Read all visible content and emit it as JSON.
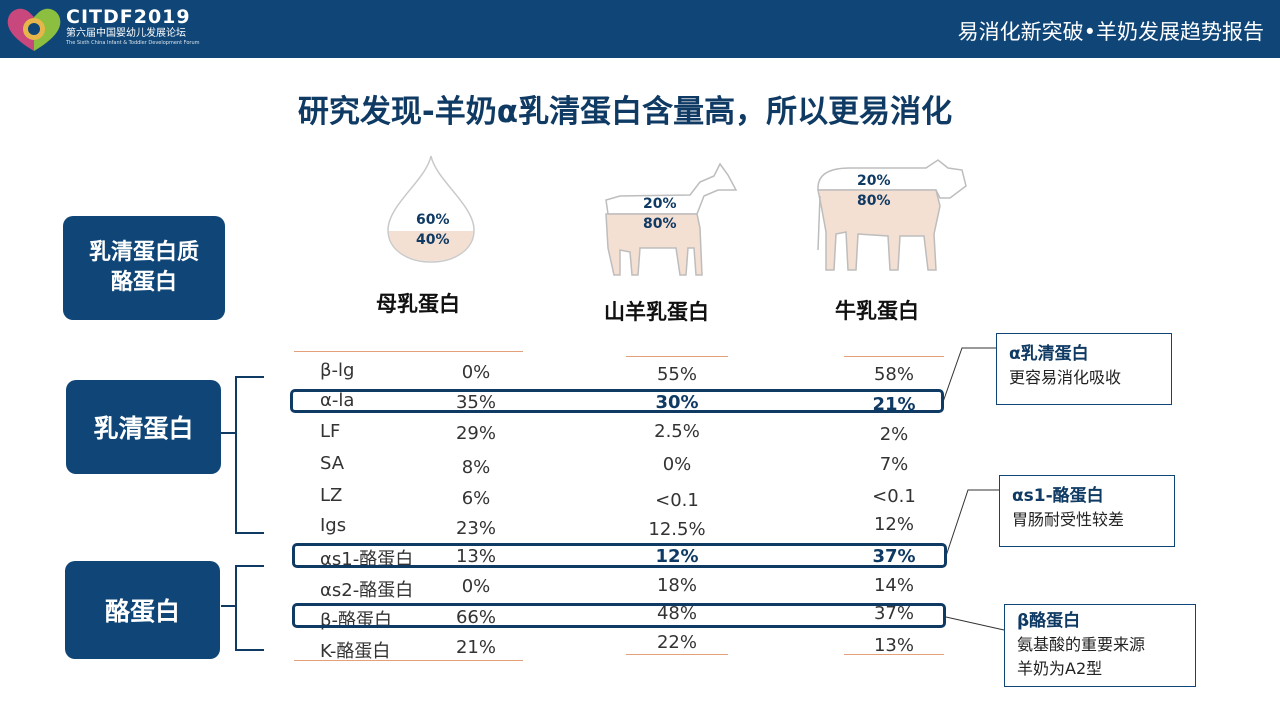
{
  "header": {
    "logo_main": "CITDF2019",
    "logo_sub": "第六届中国婴幼儿发展论坛",
    "logo_sub_en": "The Sixth China Infant & Toddler Development Forum",
    "report_title": "易消化新突破•羊奶发展趋势报告"
  },
  "title": "研究发现-羊奶α乳清蛋白含量高，所以更易消化",
  "legend_box": {
    "line1": "乳清蛋白质",
    "line2": "酪蛋白"
  },
  "group_whey": "乳清蛋白",
  "group_casein": "酪蛋白",
  "sources": [
    {
      "name": "母乳蛋白",
      "whey_pct": "60%",
      "casein_pct": "40%"
    },
    {
      "name": "山羊乳蛋白",
      "whey_pct": "20%",
      "casein_pct": "80%"
    },
    {
      "name": "牛乳蛋白",
      "whey_pct": "20%",
      "casein_pct": "80%"
    }
  ],
  "rows": [
    {
      "name": "β-lg",
      "human": "0%",
      "goat": "55%",
      "cow": "58%"
    },
    {
      "name": "α-la",
      "human": "35%",
      "goat": "30%",
      "cow": "21%"
    },
    {
      "name": "LF",
      "human": "29%",
      "goat": "2.5%",
      "cow": "2%"
    },
    {
      "name": "SA",
      "human": "8%",
      "goat": "0%",
      "cow": "7%"
    },
    {
      "name": "LZ",
      "human": "6%",
      "goat": "<0.1",
      "cow": "<0.1"
    },
    {
      "name": "Igs",
      "human": "23%",
      "goat": "12.5%",
      "cow": "12%"
    },
    {
      "name": "αs1-酪蛋白",
      "human": "13%",
      "goat": "12%",
      "cow": "37%"
    },
    {
      "name": "αs2-酪蛋白",
      "human": "0%",
      "goat": "18%",
      "cow": "14%"
    },
    {
      "name": "β-酪蛋白",
      "human": "66%",
      "goat": "48%",
      "cow": "37%"
    },
    {
      "name": "K-酪蛋白",
      "human": "21%",
      "goat": "22%",
      "cow": "13%"
    }
  ],
  "notes": [
    {
      "title": "α乳清蛋白",
      "body": [
        "更容易消化吸收"
      ]
    },
    {
      "title": "αs1-酪蛋白",
      "body": [
        "胃肠耐受性较差"
      ]
    },
    {
      "title": "β酪蛋白",
      "body": [
        "氨基酸的重要来源",
        "羊奶为A2型"
      ]
    }
  ],
  "colors": {
    "header": "#0f4677",
    "accent_line": "#e4a07a",
    "text_dark_blue": "#0f3a63"
  }
}
